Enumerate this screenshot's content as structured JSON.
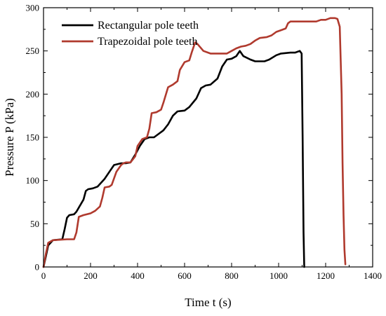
{
  "chart_data": {
    "type": "line",
    "title": "",
    "xlabel": "Time t (s)",
    "ylabel": "Pressure P (kPa)",
    "xlim": [
      0,
      1400
    ],
    "ylim": [
      0,
      300
    ],
    "x_ticks": [
      0,
      200,
      400,
      600,
      800,
      1000,
      1200,
      1400
    ],
    "y_ticks": [
      0,
      50,
      100,
      150,
      200,
      250,
      300
    ],
    "grid": false,
    "legend_position": "top-left",
    "series": [
      {
        "name": "Rectangular pole teeth",
        "color": "#000000",
        "x": [
          0,
          10,
          20,
          40,
          80,
          90,
          100,
          110,
          130,
          140,
          170,
          180,
          190,
          210,
          230,
          260,
          280,
          300,
          330,
          350,
          370,
          390,
          410,
          430,
          450,
          470,
          480,
          510,
          530,
          550,
          570,
          600,
          620,
          650,
          670,
          690,
          710,
          740,
          760,
          780,
          800,
          820,
          835,
          850,
          880,
          900,
          940,
          960,
          990,
          1010,
          1050,
          1070,
          1090,
          1098,
          1102,
          1106,
          1109
        ],
        "y": [
          0,
          12,
          25,
          31,
          32,
          44,
          57,
          60,
          61,
          64,
          78,
          88,
          90,
          91,
          93,
          102,
          110,
          118,
          120,
          120,
          121,
          130,
          140,
          148,
          150,
          150,
          152,
          158,
          165,
          175,
          180,
          181,
          185,
          195,
          207,
          210,
          211,
          218,
          232,
          240,
          241,
          244,
          250,
          244,
          240,
          238,
          238,
          240,
          245,
          247,
          248,
          248,
          250,
          247,
          150,
          40,
          0
        ]
      },
      {
        "name": "Trapezoidal pole teeth",
        "color": "#b03a2e",
        "x": [
          0,
          10,
          20,
          40,
          100,
          130,
          140,
          150,
          170,
          200,
          220,
          240,
          250,
          260,
          280,
          290,
          310,
          330,
          340,
          350,
          370,
          390,
          400,
          420,
          440,
          450,
          460,
          480,
          500,
          510,
          530,
          550,
          570,
          580,
          600,
          620,
          630,
          645,
          655,
          680,
          710,
          750,
          780,
          800,
          820,
          840,
          860,
          880,
          900,
          920,
          950,
          970,
          990,
          1010,
          1030,
          1040,
          1050,
          1080,
          1100,
          1130,
          1160,
          1180,
          1200,
          1220,
          1240,
          1250,
          1260,
          1268,
          1272,
          1276,
          1280,
          1284
        ],
        "y": [
          0,
          15,
          28,
          31,
          32,
          32,
          40,
          58,
          60,
          62,
          65,
          70,
          80,
          92,
          93,
          95,
          110,
          118,
          120,
          121,
          121,
          128,
          140,
          148,
          150,
          160,
          178,
          179,
          182,
          190,
          208,
          211,
          215,
          228,
          237,
          239,
          248,
          260,
          258,
          250,
          247,
          247,
          247,
          250,
          253,
          255,
          256,
          258,
          262,
          265,
          266,
          268,
          272,
          274,
          276,
          282,
          284,
          284,
          284,
          284,
          284,
          286,
          286,
          288,
          288,
          287,
          278,
          200,
          120,
          60,
          20,
          3
        ]
      }
    ]
  }
}
